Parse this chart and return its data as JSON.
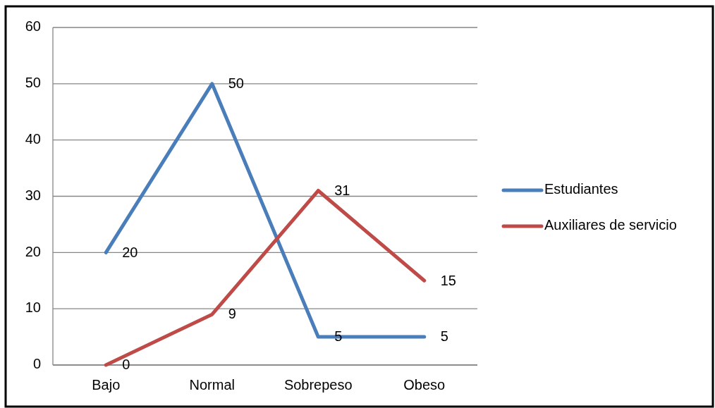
{
  "chart_data": {
    "type": "line",
    "categories": [
      "Bajo",
      "Normal",
      "Sobrepeso",
      "Obeso"
    ],
    "series": [
      {
        "name": "Estudiantes",
        "color": "#4a7ebb",
        "values": [
          20,
          50,
          5,
          5
        ]
      },
      {
        "name": "Auxiliares de servicio",
        "color": "#be4b48",
        "values": [
          0,
          9,
          31,
          15
        ]
      }
    ],
    "ylim": [
      0,
      60
    ],
    "yticks": [
      0,
      10,
      20,
      30,
      40,
      50,
      60
    ],
    "grid": "y",
    "legend": "right",
    "data_labels": true,
    "marker": "none",
    "line_style": "solid"
  }
}
